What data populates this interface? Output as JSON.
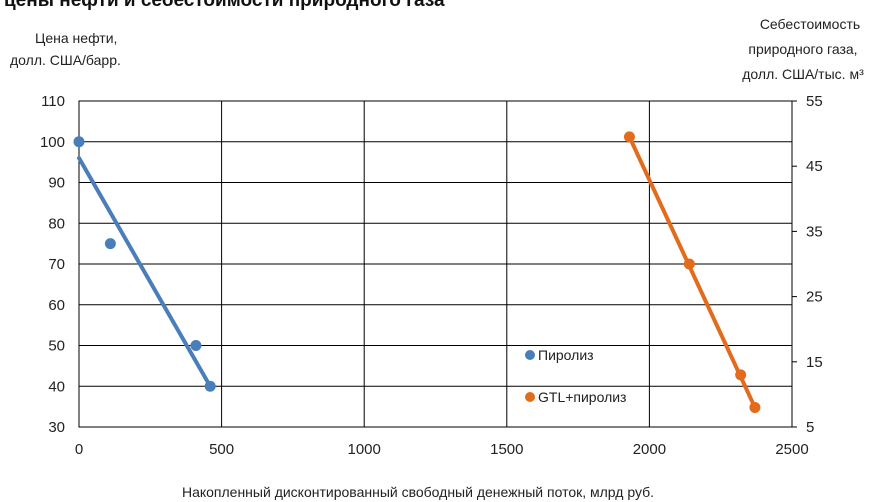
{
  "chart_data": {
    "type": "scatter",
    "title": "цены нефти и себестоимости природного газа",
    "ylabel_left_line1": "Цена нефти,",
    "ylabel_left_line2": "долл. США/барр.",
    "ylabel_right_line1": "Себестоимость",
    "ylabel_right_line2": "природного газа,",
    "ylabel_right_line3": "долл. США/тыс. м³",
    "xlabel": "Накопленный дисконтированный свободный денежный поток, млрд руб.",
    "xlim": [
      0,
      2500
    ],
    "ylim_left": [
      30,
      110
    ],
    "ylim_right": [
      5,
      55
    ],
    "x_ticks": [
      "0",
      "500",
      "1000",
      "1500",
      "2000",
      "2500"
    ],
    "y_left_ticks": [
      "30",
      "40",
      "50",
      "60",
      "70",
      "80",
      "90",
      "100",
      "110"
    ],
    "y_right_ticks": [
      "5",
      "15",
      "25",
      "35",
      "45",
      "55"
    ],
    "grid": true,
    "legend_position": "inside-right",
    "series": [
      {
        "name": "Пиролиз",
        "axis": "left",
        "color": "#4a7ebb",
        "points": [
          [
            0,
            100
          ],
          [
            110,
            75
          ],
          [
            410,
            50
          ],
          [
            460,
            40
          ]
        ],
        "trendline": [
          [
            0,
            96
          ],
          [
            460,
            40
          ]
        ]
      },
      {
        "name": "GTL+пиролиз",
        "axis": "right",
        "color": "#e36c1c",
        "points": [
          [
            1930,
            49.5
          ],
          [
            2140,
            30
          ],
          [
            2320,
            13
          ],
          [
            2370,
            8
          ]
        ],
        "trendline": [
          [
            1930,
            49.5
          ],
          [
            2370,
            8
          ]
        ]
      }
    ]
  }
}
